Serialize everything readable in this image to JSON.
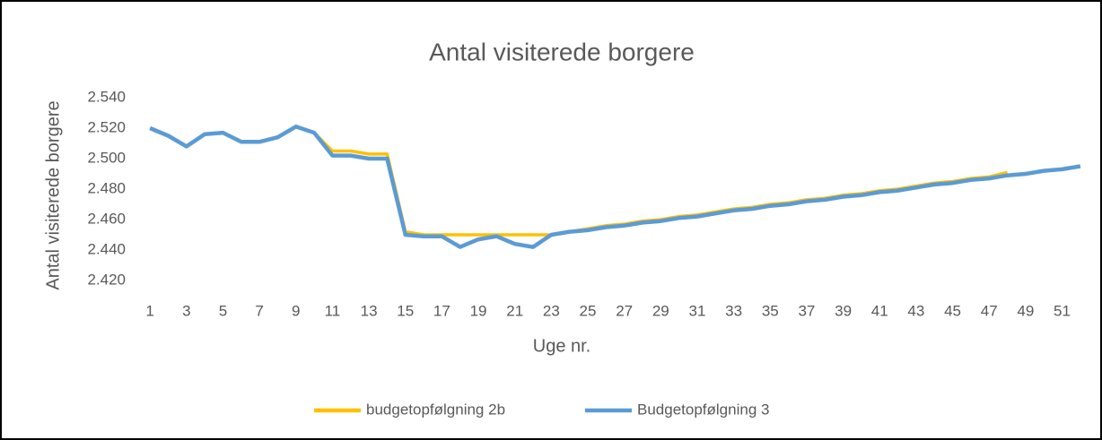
{
  "chart_data": {
    "type": "line",
    "title": "Antal visiterede borgere",
    "x_label": "Uge nr.",
    "y_label": "Antal visiterede borgere",
    "categories": [
      1,
      null,
      3,
      null,
      5,
      null,
      7,
      null,
      9,
      null,
      11,
      null,
      13,
      null,
      15,
      null,
      17,
      null,
      19,
      null,
      21,
      null,
      23,
      null,
      25,
      null,
      27,
      null,
      29,
      null,
      31,
      null,
      33,
      null,
      35,
      null,
      37,
      null,
      39,
      null,
      41,
      null,
      43,
      null,
      45,
      null,
      47,
      null,
      49,
      null,
      51,
      null
    ],
    "series": [
      {
        "name": "budgetopfølgning 2b",
        "color": "#FFC000",
        "values": [
          2520,
          2515,
          2508,
          2516,
          2517,
          2511,
          2511,
          2514,
          2521,
          2517,
          2505,
          2505,
          2503,
          2503,
          2452,
          2450,
          2450,
          2450,
          2450,
          2450,
          2450,
          2450,
          2450,
          2452,
          2454,
          2456,
          2457,
          2459,
          2460,
          2462,
          2463,
          2465,
          2467,
          2468,
          2470,
          2471,
          2473,
          2474,
          2476,
          2477,
          2479,
          2480,
          2482,
          2484,
          2485,
          2487,
          2488,
          2491,
          null,
          null,
          null,
          null
        ]
      },
      {
        "name": "Budgetopfølgning 3",
        "color": "#5B9BD5",
        "values": [
          2520,
          2515,
          2508,
          2516,
          2517,
          2511,
          2511,
          2514,
          2521,
          2517,
          2502,
          2502,
          2500,
          2500,
          2450,
          2449,
          2449,
          2442,
          2447,
          2449,
          2444,
          2442,
          2450,
          2452,
          2453,
          2455,
          2456,
          2458,
          2459,
          2461,
          2462,
          2464,
          2466,
          2467,
          2469,
          2470,
          2472,
          2473,
          2475,
          2476,
          2478,
          2479,
          2481,
          2483,
          2484,
          2486,
          2487,
          2489,
          2490,
          2492,
          2493,
          2495
        ]
      }
    ],
    "ylim": [
      2410,
      2540
    ],
    "yticks": [
      {
        "value": 2420,
        "label": "2.420"
      },
      {
        "value": 2440,
        "label": "2.440"
      },
      {
        "value": 2460,
        "label": "2.460"
      },
      {
        "value": 2480,
        "label": "2.480"
      },
      {
        "value": 2500,
        "label": "2.500"
      },
      {
        "value": 2520,
        "label": "2.520"
      },
      {
        "value": 2540,
        "label": "2.540"
      }
    ],
    "grid": false,
    "legend": "bottom"
  }
}
